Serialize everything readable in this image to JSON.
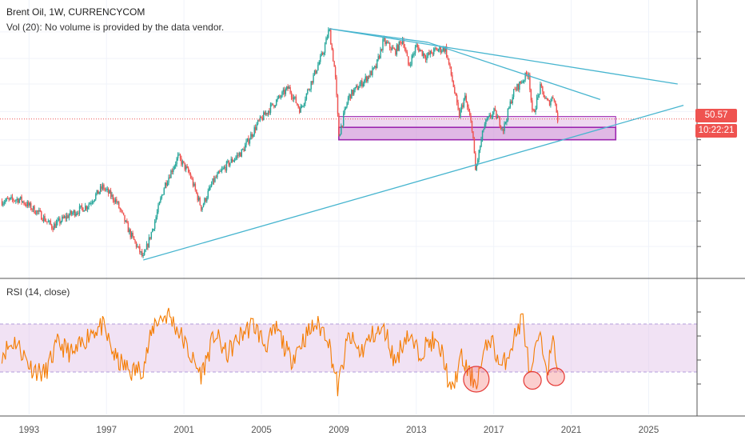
{
  "header": {
    "symbol_line": "Brent Oil, 1W, CURRENCYCOM",
    "volume_line": "Vol (20): No volume is provided by the data vendor."
  },
  "rsi_pane": {
    "title": "RSI (14, close)"
  },
  "price_axis": {
    "last_price_label": "50.57",
    "countdown_label": "10:22:21"
  },
  "colors": {
    "candle_up": "#26a69a",
    "candle_down": "#ef5350",
    "trendline": "#47b5cf",
    "zone_border": "#9c27b0",
    "zone_fill": "#ce93d8",
    "rsi_line": "#f57c00",
    "rsi_band": "#e1bee7",
    "price_tag": "#ef5350"
  },
  "chart_data": [
    {
      "type": "candlestick",
      "title": "Brent Oil, 1W, CURRENCYCOM",
      "x_axis": {
        "tick_labels": [
          "1993",
          "1997",
          "2001",
          "2005",
          "2009",
          "2013",
          "2017",
          "2021",
          "2025"
        ],
        "range": [
          1991.5,
          2027.5
        ]
      },
      "y_axis": {
        "scale": "log",
        "tick_labels_shown": false,
        "range": [
          9,
          180
        ]
      },
      "series": [
        {
          "points": [
            [
              1991.6,
              20
            ],
            [
              1992.5,
              20.5
            ],
            [
              1993.5,
              17.5
            ],
            [
              1994.2,
              15
            ],
            [
              1995.0,
              17
            ],
            [
              1996.0,
              19
            ],
            [
              1996.8,
              23.5
            ],
            [
              1997.5,
              20
            ],
            [
              1998.2,
              14
            ],
            [
              1998.9,
              10.5
            ],
            [
              1999.5,
              16
            ],
            [
              2000.0,
              24
            ],
            [
              2000.7,
              33
            ],
            [
              2001.3,
              27
            ],
            [
              2001.9,
              18.5
            ],
            [
              2002.5,
              25
            ],
            [
              2003.2,
              30
            ],
            [
              2004.0,
              35
            ],
            [
              2004.8,
              48
            ],
            [
              2005.5,
              58
            ],
            [
              2006.4,
              72
            ],
            [
              2007.0,
              56
            ],
            [
              2007.6,
              78
            ],
            [
              2008.2,
              108
            ],
            [
              2008.5,
              140
            ],
            [
              2008.8,
              85
            ],
            [
              2009.0,
              42
            ],
            [
              2009.5,
              65
            ],
            [
              2010.3,
              78
            ],
            [
              2010.9,
              90
            ],
            [
              2011.3,
              122
            ],
            [
              2011.9,
              108
            ],
            [
              2012.3,
              125
            ],
            [
              2012.6,
              92
            ],
            [
              2013.0,
              115
            ],
            [
              2013.5,
              102
            ],
            [
              2014.0,
              110
            ],
            [
              2014.5,
              112
            ],
            [
              2014.9,
              75
            ],
            [
              2015.2,
              52
            ],
            [
              2015.5,
              65
            ],
            [
              2015.9,
              45
            ],
            [
              2016.05,
              28
            ],
            [
              2016.5,
              47
            ],
            [
              2017.0,
              55
            ],
            [
              2017.5,
              45
            ],
            [
              2018.0,
              68
            ],
            [
              2018.8,
              86
            ],
            [
              2019.0,
              52
            ],
            [
              2019.4,
              72
            ],
            [
              2019.8,
              60
            ],
            [
              2020.1,
              66
            ],
            [
              2020.3,
              50.57
            ]
          ]
        }
      ],
      "drawings": {
        "trendlines": [
          {
            "from": [
              1998.9,
              10.3
            ],
            "to": [
              2026.8,
              59
            ]
          },
          {
            "from": [
              2008.5,
              140
            ],
            "to": [
              2026.5,
              75
            ]
          },
          {
            "from": [
              2013.6,
              120
            ],
            "to": [
              2022.5,
              63
            ]
          },
          {
            "from": [
              2008.5,
              140
            ],
            "to": [
              2013.6,
              120
            ]
          }
        ],
        "rectangles": [
          {
            "x": [
              2009.0,
              2023.3
            ],
            "y": [
              40,
              52
            ]
          },
          {
            "x": [
              2009.0,
              2023.3
            ],
            "y": [
              40,
              46
            ]
          }
        ],
        "last_price_line": 50.57
      }
    },
    {
      "type": "line",
      "title": "RSI (14, close)",
      "y_range": [
        0,
        100
      ],
      "bands": [
        30,
        70
      ],
      "series": [
        {
          "points": [
            [
              1991.6,
              46
            ],
            [
              1992.3,
              56
            ],
            [
              1993.1,
              34
            ],
            [
              1993.8,
              28
            ],
            [
              1994.5,
              54
            ],
            [
              1995.3,
              44
            ],
            [
              1996.2,
              64
            ],
            [
              1996.8,
              68
            ],
            [
              1997.5,
              40
            ],
            [
              1998.3,
              30
            ],
            [
              1998.9,
              34
            ],
            [
              1999.5,
              72
            ],
            [
              2000.2,
              78
            ],
            [
              2000.8,
              62
            ],
            [
              2001.5,
              38
            ],
            [
              2001.9,
              28
            ],
            [
              2002.6,
              62
            ],
            [
              2003.2,
              44
            ],
            [
              2004.0,
              62
            ],
            [
              2004.6,
              70
            ],
            [
              2005.2,
              52
            ],
            [
              2005.8,
              66
            ],
            [
              2006.5,
              40
            ],
            [
              2007.2,
              58
            ],
            [
              2007.8,
              70
            ],
            [
              2008.4,
              62
            ],
            [
              2008.95,
              16
            ],
            [
              2009.5,
              60
            ],
            [
              2010.1,
              46
            ],
            [
              2010.8,
              62
            ],
            [
              2011.4,
              64
            ],
            [
              2011.9,
              38
            ],
            [
              2012.5,
              62
            ],
            [
              2013.1,
              46
            ],
            [
              2013.8,
              56
            ],
            [
              2014.4,
              44
            ],
            [
              2014.8,
              10
            ],
            [
              2015.3,
              42
            ],
            [
              2015.8,
              26
            ],
            [
              2016.1,
              22
            ],
            [
              2016.8,
              60
            ],
            [
              2017.4,
              32
            ],
            [
              2018.0,
              56
            ],
            [
              2018.5,
              76
            ],
            [
              2018.9,
              22
            ],
            [
              2019.3,
              60
            ],
            [
              2019.8,
              34
            ],
            [
              2020.1,
              56
            ],
            [
              2020.3,
              34
            ]
          ]
        }
      ],
      "highlight_circles": [
        [
          2016.1,
          24
        ],
        [
          2019.0,
          23
        ],
        [
          2020.2,
          26
        ]
      ]
    }
  ]
}
